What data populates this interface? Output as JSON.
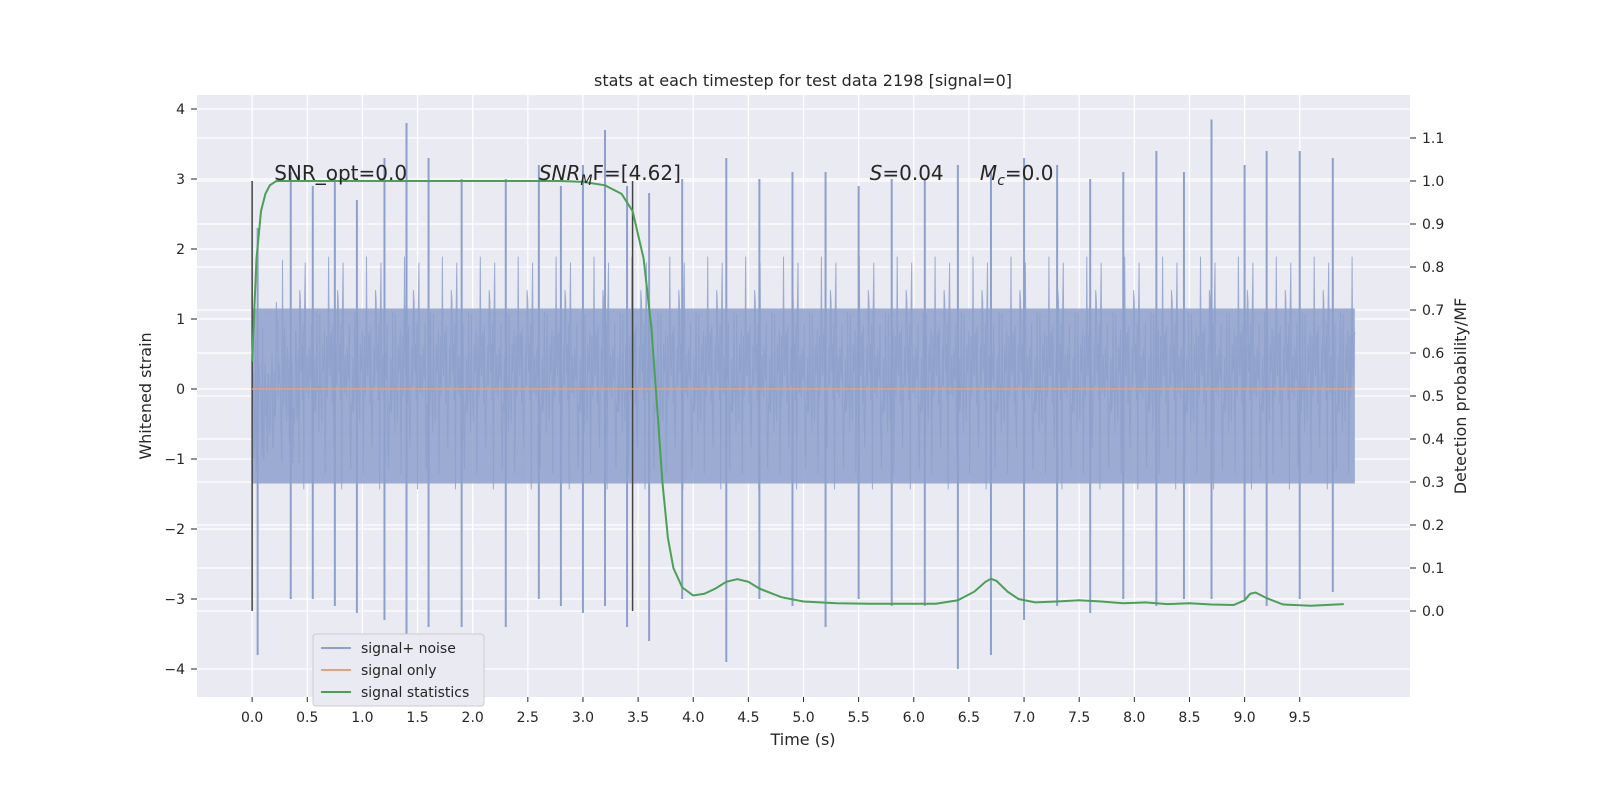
{
  "chart_data": {
    "type": "line",
    "title": "stats at each timestep for test data 2198 [signal=0]",
    "xlabel": "Time (s)",
    "ylabel_left": "Whitened strain",
    "ylabel_right": "Detection probability/MF",
    "xlim": [
      -0.5,
      10.5
    ],
    "ylim_left": [
      -4.4,
      4.2
    ],
    "ylim_right": [
      -0.2,
      1.2
    ],
    "x_ticks": [
      0.0,
      0.5,
      1.0,
      1.5,
      2.0,
      2.5,
      3.0,
      3.5,
      4.0,
      4.5,
      5.0,
      5.5,
      6.0,
      6.5,
      7.0,
      7.5,
      8.0,
      8.5,
      9.0,
      9.5
    ],
    "x_tick_labels": [
      "0.0",
      "0.5",
      "1.0",
      "1.5",
      "2.0",
      "2.5",
      "3.0",
      "3.5",
      "4.0",
      "4.5",
      "5.0",
      "5.5",
      "6.0",
      "6.5",
      "7.0",
      "7.5",
      "8.0",
      "8.5",
      "9.0",
      "9.5"
    ],
    "y_left_ticks": [
      -4,
      -3,
      -2,
      -1,
      0,
      1,
      2,
      3,
      4
    ],
    "y_left_tick_labels": [
      "−4",
      "−3",
      "−2",
      "−1",
      "0",
      "1",
      "2",
      "3",
      "4"
    ],
    "y_right_ticks": [
      0.0,
      0.1,
      0.2,
      0.3,
      0.4,
      0.5,
      0.6,
      0.7,
      0.8,
      0.9,
      1.0,
      1.1
    ],
    "y_right_tick_labels": [
      "0.0",
      "0.1",
      "0.2",
      "0.3",
      "0.4",
      "0.5",
      "0.6",
      "0.7",
      "0.8",
      "0.9",
      "1.0",
      "1.1"
    ],
    "grid": true,
    "legend_placement": "lower-left",
    "series": [
      {
        "name": "signal+ noise",
        "axis": "left",
        "color": "#8da0cb",
        "x_range": [
          0.0,
          10.0
        ],
        "envelope_peaks": {
          "x": [
            0.05,
            0.35,
            0.55,
            0.75,
            0.95,
            1.2,
            1.4,
            1.6,
            1.9,
            2.3,
            2.6,
            2.8,
            3.0,
            3.2,
            3.4,
            3.6,
            3.9,
            4.3,
            4.6,
            4.9,
            5.2,
            5.5,
            5.8,
            6.1,
            6.4,
            6.7,
            7.0,
            7.3,
            7.6,
            7.9,
            8.2,
            8.45,
            8.7,
            9.0,
            9.2,
            9.5,
            9.8
          ],
          "max": [
            2.3,
            3.1,
            2.9,
            3.0,
            2.7,
            3.3,
            3.8,
            3.3,
            3.0,
            3.0,
            3.2,
            2.9,
            3.2,
            3.7,
            2.9,
            2.8,
            3.0,
            3.3,
            3.0,
            3.1,
            3.1,
            2.9,
            3.0,
            3.0,
            3.2,
            3.1,
            3.3,
            3.2,
            3.0,
            3.1,
            3.4,
            3.1,
            3.85,
            3.2,
            3.4,
            3.4,
            3.3
          ],
          "min": [
            -3.8,
            -3.0,
            -3.0,
            -3.1,
            -3.2,
            -3.3,
            -3.6,
            -3.4,
            -3.4,
            -3.4,
            -3.0,
            -3.1,
            -3.2,
            -3.1,
            -3.4,
            -3.6,
            -3.0,
            -3.9,
            -3.0,
            -3.1,
            -3.4,
            -3.0,
            -3.1,
            -3.1,
            -4.0,
            -3.8,
            -3.3,
            -3.1,
            -3.2,
            -3.0,
            -3.1,
            -3.0,
            -3.0,
            -3.0,
            -3.1,
            -3.0,
            -2.9
          ]
        }
      },
      {
        "name": "signal only",
        "axis": "left",
        "color": "#e5a17f",
        "x": [
          0.0,
          10.0
        ],
        "y": [
          0.0,
          0.0
        ]
      },
      {
        "name": "signal statistics",
        "axis": "right",
        "color": "#4aa057",
        "x": [
          0.0,
          0.04,
          0.08,
          0.12,
          0.16,
          0.22,
          0.3,
          0.5,
          1.0,
          2.0,
          2.8,
          3.0,
          3.2,
          3.35,
          3.45,
          3.55,
          3.62,
          3.68,
          3.72,
          3.77,
          3.82,
          3.9,
          4.0,
          4.1,
          4.2,
          4.3,
          4.4,
          4.5,
          4.6,
          4.8,
          5.0,
          5.3,
          5.6,
          5.9,
          6.2,
          6.4,
          6.55,
          6.65,
          6.7,
          6.75,
          6.85,
          6.95,
          7.1,
          7.3,
          7.5,
          7.7,
          7.9,
          8.1,
          8.3,
          8.5,
          8.7,
          8.9,
          9.0,
          9.05,
          9.1,
          9.2,
          9.35,
          9.6,
          9.9
        ],
        "y": [
          0.58,
          0.82,
          0.93,
          0.97,
          0.99,
          1.0,
          1.0,
          1.0,
          1.0,
          1.0,
          1.0,
          0.998,
          0.99,
          0.97,
          0.93,
          0.82,
          0.66,
          0.45,
          0.3,
          0.17,
          0.1,
          0.055,
          0.036,
          0.04,
          0.052,
          0.068,
          0.074,
          0.068,
          0.052,
          0.032,
          0.022,
          0.018,
          0.017,
          0.017,
          0.017,
          0.025,
          0.045,
          0.068,
          0.075,
          0.07,
          0.045,
          0.028,
          0.02,
          0.022,
          0.025,
          0.022,
          0.018,
          0.02,
          0.016,
          0.018,
          0.015,
          0.014,
          0.025,
          0.04,
          0.043,
          0.03,
          0.015,
          0.012,
          0.016
        ]
      }
    ],
    "vertical_lines": [
      {
        "x": 0.0,
        "ylim_right": [
          0.0,
          1.0
        ]
      },
      {
        "x": 3.45,
        "ylim_right": [
          0.0,
          1.0
        ]
      }
    ],
    "annotations": [
      {
        "id": "snr_opt",
        "x": 0.2,
        "y_right": 1.0,
        "text": "SNR_opt=0.0"
      },
      {
        "id": "snr_mf",
        "x": 2.6,
        "y_right": 1.0,
        "text_main": "SNR",
        "text_sub": "M",
        "text_tail": "F=[4.62]"
      },
      {
        "id": "s_stat",
        "x": 5.6,
        "y_right": 1.0,
        "text_main": "S",
        "text_tail": "=0.04"
      },
      {
        "id": "mc",
        "x": 6.6,
        "y_right": 1.0,
        "text_main": "M",
        "text_sub": "c",
        "text_tail": "=0.0"
      }
    ]
  }
}
